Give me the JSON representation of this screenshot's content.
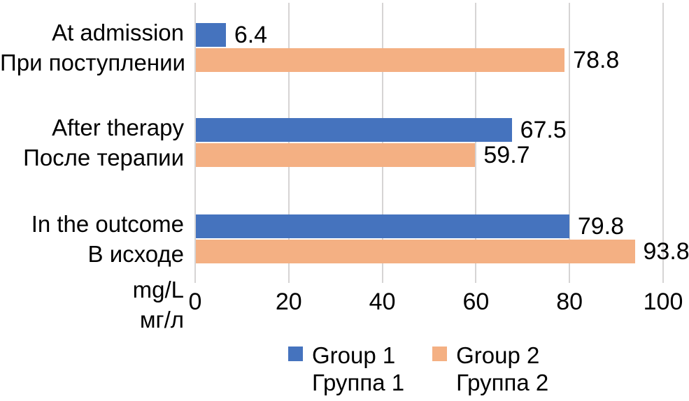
{
  "chart_data": {
    "type": "bar",
    "orientation": "horizontal",
    "title": "",
    "categories": [
      {
        "en": "At admission",
        "ru": "При поступлении"
      },
      {
        "en": "After therapy",
        "ru": "После терапии"
      },
      {
        "en": "In the outcome",
        "ru": "В исходе"
      }
    ],
    "series": [
      {
        "name_en": "Group 1",
        "name_ru": "Группа 1",
        "color": "#4573BE",
        "values": [
          6.4,
          67.5,
          79.8
        ]
      },
      {
        "name_en": "Group 2",
        "name_ru": "Группа 2",
        "color": "#F4B083",
        "values": [
          78.8,
          59.7,
          93.8
        ]
      }
    ],
    "x_axis": {
      "min": 0,
      "max": 100,
      "ticks": [
        0,
        20,
        40,
        60,
        80,
        100
      ],
      "unit_en": "mg/L",
      "unit_ru": "мг/л"
    },
    "value_labels_shown": true,
    "grid": true,
    "legend_position": "bottom",
    "colors": {
      "gridline": "#D6D4D4",
      "text": "#000000",
      "background": "#FFFFFF"
    }
  }
}
